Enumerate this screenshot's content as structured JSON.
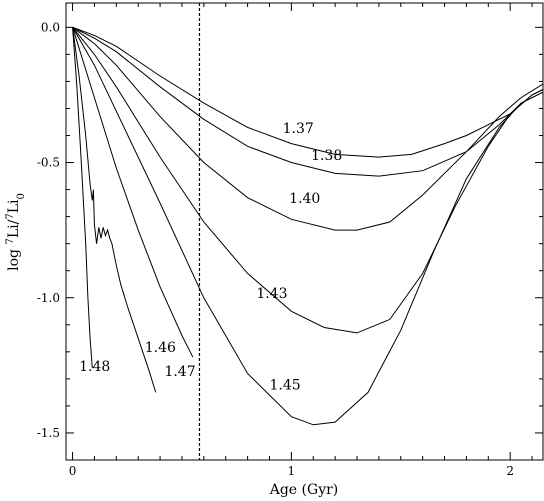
{
  "chart_data": {
    "type": "line",
    "xlabel": "Age (Gyr)",
    "ylabel_parts": {
      "log": "log ",
      "sup1": "7",
      "li1": "Li/",
      "sup2": "7",
      "li2": "Li",
      "sub": "0"
    },
    "xlim": [
      -0.03,
      2.15
    ],
    "ylim": [
      -1.6,
      0.09
    ],
    "xticks": [
      {
        "value": 0,
        "label": "0"
      },
      {
        "value": 1,
        "label": "1"
      },
      {
        "value": 2,
        "label": "2"
      }
    ],
    "yticks": [
      {
        "value": 0,
        "label": "0.0"
      },
      {
        "value": -0.5,
        "label": "-0.5"
      },
      {
        "value": -1.0,
        "label": "-1.0"
      },
      {
        "value": -1.5,
        "label": "-1.5"
      }
    ],
    "vline_age": 0.58,
    "series": [
      {
        "name": "1.37",
        "x": [
          0,
          0.1,
          0.2,
          0.4,
          0.6,
          0.8,
          1.0,
          1.2,
          1.4,
          1.55,
          1.7,
          1.8,
          1.9,
          2.0,
          2.1,
          2.15
        ],
        "y": [
          0,
          -0.03,
          -0.07,
          -0.18,
          -0.28,
          -0.37,
          -0.43,
          -0.47,
          -0.48,
          -0.47,
          -0.43,
          -0.4,
          -0.36,
          -0.32,
          -0.25,
          -0.23
        ]
      },
      {
        "name": "1.38",
        "x": [
          0,
          0.1,
          0.2,
          0.4,
          0.6,
          0.8,
          1.0,
          1.2,
          1.4,
          1.6,
          1.8,
          1.95,
          2.05,
          2.15
        ],
        "y": [
          0,
          -0.04,
          -0.09,
          -0.22,
          -0.34,
          -0.44,
          -0.5,
          -0.54,
          -0.55,
          -0.53,
          -0.46,
          -0.36,
          -0.28,
          -0.24
        ]
      },
      {
        "name": "1.40",
        "x": [
          0,
          0.1,
          0.2,
          0.4,
          0.6,
          0.8,
          1.0,
          1.2,
          1.3,
          1.45,
          1.6,
          1.8,
          1.95,
          2.05,
          2.15
        ],
        "y": [
          0,
          -0.06,
          -0.14,
          -0.33,
          -0.5,
          -0.63,
          -0.71,
          -0.75,
          -0.75,
          -0.72,
          -0.62,
          -0.46,
          -0.33,
          -0.26,
          -0.21
        ]
      },
      {
        "name": "1.43",
        "x": [
          0,
          0.1,
          0.2,
          0.4,
          0.6,
          0.8,
          1.0,
          1.15,
          1.3,
          1.45,
          1.6,
          1.75,
          1.9,
          2.0,
          2.1,
          2.15
        ],
        "y": [
          0,
          -0.1,
          -0.22,
          -0.48,
          -0.72,
          -0.91,
          -1.05,
          -1.11,
          -1.13,
          -1.08,
          -0.91,
          -0.66,
          -0.44,
          -0.32,
          -0.25,
          -0.23
        ]
      },
      {
        "name": "1.45",
        "x": [
          0,
          0.1,
          0.2,
          0.4,
          0.6,
          0.8,
          1.0,
          1.1,
          1.2,
          1.35,
          1.5,
          1.65,
          1.8,
          1.95,
          2.05,
          2.15
        ],
        "y": [
          0,
          -0.14,
          -0.31,
          -0.65,
          -1.0,
          -1.28,
          -1.44,
          -1.47,
          -1.46,
          -1.35,
          -1.12,
          -0.83,
          -0.56,
          -0.37,
          -0.28,
          -0.24
        ]
      },
      {
        "name": "1.46",
        "x": [
          0,
          0.1,
          0.2,
          0.3,
          0.4,
          0.5,
          0.55
        ],
        "y": [
          0,
          -0.26,
          -0.52,
          -0.75,
          -0.96,
          -1.14,
          -1.22
        ]
      },
      {
        "name": "1.47",
        "x": [
          0,
          0.03,
          0.06,
          0.08,
          0.09,
          0.095,
          0.1,
          0.11,
          0.12,
          0.13,
          0.14,
          0.15,
          0.16,
          0.17,
          0.18,
          0.2,
          0.22,
          0.25,
          0.3,
          0.35,
          0.38
        ],
        "y": [
          0,
          -0.18,
          -0.4,
          -0.58,
          -0.64,
          -0.6,
          -0.73,
          -0.8,
          -0.74,
          -0.78,
          -0.74,
          -0.77,
          -0.75,
          -0.78,
          -0.8,
          -0.88,
          -0.95,
          -1.03,
          -1.15,
          -1.27,
          -1.35
        ]
      },
      {
        "name": "1.48",
        "x": [
          0,
          0.02,
          0.04,
          0.06,
          0.07,
          0.08,
          0.09
        ],
        "y": [
          0,
          -0.22,
          -0.5,
          -0.8,
          -1.0,
          -1.15,
          -1.26
        ]
      }
    ],
    "labels": [
      {
        "text": "1.37",
        "x": 0.96,
        "y": -0.39
      },
      {
        "text": "1.38",
        "x": 1.09,
        "y": -0.49
      },
      {
        "text": "1.40",
        "x": 0.99,
        "y": -0.65
      },
      {
        "text": "1.43",
        "x": 0.84,
        "y": -1.0
      },
      {
        "text": "1.45",
        "x": 0.9,
        "y": -1.34
      },
      {
        "text": "1.46",
        "x": 0.33,
        "y": -1.2
      },
      {
        "text": "1.47",
        "x": 0.42,
        "y": -1.29
      },
      {
        "text": "1.48",
        "x": 0.03,
        "y": -1.27
      }
    ],
    "grid": false,
    "legend": "none"
  }
}
